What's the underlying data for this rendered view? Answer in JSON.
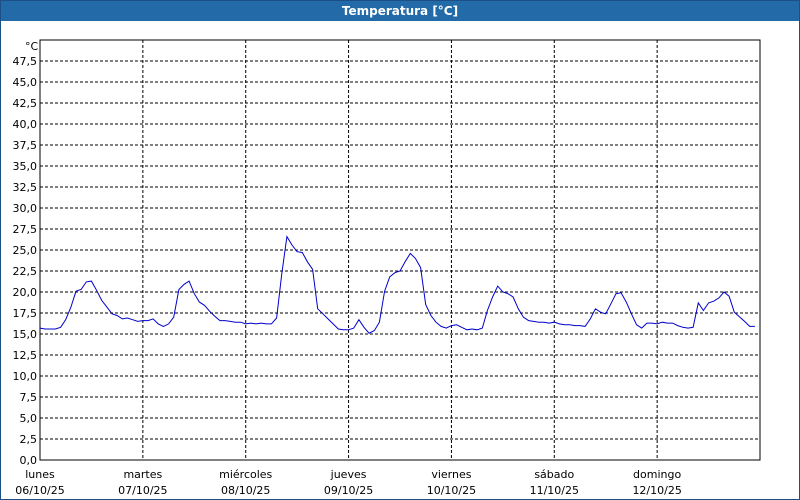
{
  "window": {
    "title": "Temperatura [°C]"
  },
  "chart_data": {
    "type": "line",
    "ylabel": "°C",
    "ylim": [
      0,
      50
    ],
    "yticks": [
      "0,0",
      "2,5",
      "5,0",
      "7,5",
      "10,0",
      "12,5",
      "15,0",
      "17,5",
      "20,0",
      "22,5",
      "25,0",
      "27,5",
      "30,0",
      "32,5",
      "35,0",
      "37,5",
      "40,0",
      "42,5",
      "45,0",
      "47,5"
    ],
    "xlim": [
      0,
      7
    ],
    "xticks": [
      {
        "day": "lunes",
        "date": "06/10/25"
      },
      {
        "day": "martes",
        "date": "07/10/25"
      },
      {
        "day": "miércoles",
        "date": "08/10/25"
      },
      {
        "day": "jueves",
        "date": "09/10/25"
      },
      {
        "day": "viernes",
        "date": "10/10/25"
      },
      {
        "day": "sábado",
        "date": "11/10/25"
      },
      {
        "day": "domingo",
        "date": "12/10/25"
      }
    ],
    "grid": true,
    "series": [
      {
        "color": "#0000cc",
        "x": [
          0,
          0.05,
          0.1,
          0.15,
          0.2,
          0.25,
          0.3,
          0.35,
          0.4,
          0.45,
          0.5,
          0.55,
          0.6,
          0.65,
          0.7,
          0.75,
          0.8,
          0.85,
          0.9,
          0.95,
          1.0,
          1.05,
          1.1,
          1.15,
          1.2,
          1.25,
          1.3,
          1.35,
          1.4,
          1.45,
          1.5,
          1.55,
          1.6,
          1.65,
          1.7,
          1.75,
          1.8,
          1.85,
          1.9,
          1.95,
          2.0,
          2.05,
          2.1,
          2.15,
          2.2,
          2.25,
          2.3,
          2.35,
          2.4,
          2.45,
          2.5,
          2.55,
          2.6,
          2.65,
          2.7,
          2.75,
          2.8,
          2.85,
          2.9,
          2.95,
          3.0,
          3.05,
          3.1,
          3.15,
          3.2,
          3.25,
          3.3,
          3.35,
          3.4,
          3.45,
          3.5,
          3.55,
          3.6,
          3.65,
          3.7,
          3.75,
          3.8,
          3.85,
          3.9,
          3.95,
          4.0,
          4.05,
          4.1,
          4.15,
          4.2,
          4.25,
          4.3,
          4.35,
          4.4,
          4.45,
          4.5,
          4.55,
          4.6,
          4.65,
          4.7,
          4.75,
          4.8,
          4.85,
          4.9,
          4.95,
          5.0,
          5.05,
          5.1,
          5.15,
          5.2,
          5.25,
          5.3,
          5.35,
          5.4,
          5.45,
          5.5,
          5.55,
          5.6,
          5.65,
          5.7,
          5.75,
          5.8,
          5.85,
          5.9,
          5.95,
          6.0,
          6.05,
          6.1,
          6.15,
          6.2,
          6.25,
          6.3,
          6.35,
          6.4,
          6.45,
          6.5,
          6.55,
          6.6,
          6.65,
          6.7,
          6.75,
          6.85,
          6.9,
          6.95
        ],
        "y": [
          15.7,
          15.6,
          15.6,
          15.6,
          15.8,
          16.7,
          18.2,
          20.1,
          20.3,
          21.2,
          21.3,
          20.2,
          19.0,
          18.2,
          17.4,
          17.2,
          16.8,
          16.9,
          16.7,
          16.5,
          16.6,
          16.6,
          16.8,
          16.2,
          15.9,
          16.2,
          17.0,
          20.3,
          20.9,
          21.3,
          19.8,
          18.8,
          18.4,
          17.7,
          17.1,
          16.6,
          16.6,
          16.5,
          16.4,
          16.4,
          16.2,
          16.3,
          16.2,
          16.3,
          16.2,
          16.2,
          16.9,
          22.1,
          26.6,
          25.6,
          24.8,
          24.7,
          23.6,
          22.7,
          18.0,
          17.4,
          16.8,
          16.2,
          15.6,
          15.5,
          15.5,
          15.7,
          16.7,
          15.8,
          15.1,
          15.4,
          16.4,
          20.1,
          21.8,
          22.3,
          22.5,
          23.6,
          24.6,
          24.0,
          22.9,
          18.5,
          17.2,
          16.4,
          15.9,
          15.7,
          16.0,
          16.1,
          15.8,
          15.5,
          15.6,
          15.5,
          15.7,
          17.8,
          19.4,
          20.7,
          20.0,
          19.8,
          19.4,
          18.0,
          17.0,
          16.6,
          16.5,
          16.4,
          16.4,
          16.3,
          16.4,
          16.2,
          16.1,
          16.1,
          16.0,
          16.0,
          15.9,
          16.8,
          18.0,
          17.6,
          17.4,
          18.6,
          19.8,
          19.9,
          18.8,
          17.4,
          16.1,
          15.7,
          16.3,
          16.3,
          16.2,
          16.4,
          16.3,
          16.3,
          16.0,
          15.8,
          15.7,
          15.8,
          18.7,
          17.8,
          18.7,
          18.9,
          19.3,
          20.0,
          19.5,
          17.6,
          16.5,
          15.9,
          15.9
        ]
      }
    ]
  }
}
